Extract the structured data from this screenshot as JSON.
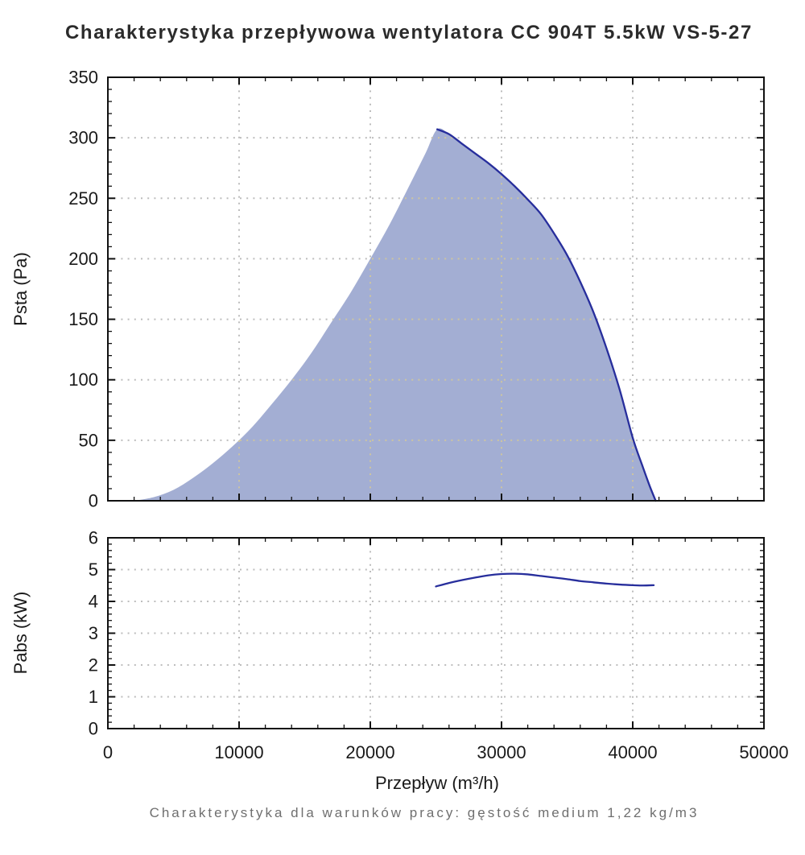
{
  "title": "Charakterystyka przepływowa wentylatora CC 904T 5.5kW VS-5-27",
  "caption": "Charakterystyka dla warunków pracy: gęstość medium 1,22 kg/m3",
  "xlabel": "Przepływ (m³/h)",
  "colors": {
    "area_fill": "#a3aed3",
    "curve_line": "#272e9c",
    "grid_dots": "#bdbdbd",
    "grid_dots_on_fill": "#cdc5a0",
    "axis": "#111111",
    "tick_text": "#1a1a1a",
    "title_text": "#2b2b2b",
    "caption_text": "#6f6f6f"
  },
  "chart_data": [
    {
      "type": "area",
      "name": "static-pressure-plot",
      "title": "",
      "xlabel": "",
      "ylabel": "Psta (Pa)",
      "xlim": [
        0,
        50000
      ],
      "ylim": [
        0,
        350
      ],
      "grid": "dotted",
      "legend": "none",
      "x_ticks": {
        "values": [
          0,
          10000,
          20000,
          30000,
          40000,
          50000
        ],
        "labels": [
          "0",
          "10000",
          "20000",
          "30000",
          "40000",
          "50000"
        ],
        "minor_step": 2000
      },
      "y_ticks": {
        "values": [
          0,
          50,
          100,
          150,
          200,
          250,
          300,
          350
        ],
        "labels": [
          "0",
          "50",
          "100",
          "150",
          "200",
          "250",
          "300",
          "350"
        ],
        "minor_step": 10
      },
      "series": [
        {
          "name": "operating-area-left-boundary",
          "type": "area-edge",
          "points": [
            [
              2000,
              0
            ],
            [
              3500,
              3
            ],
            [
              5000,
              9
            ],
            [
              6500,
              19
            ],
            [
              8000,
              31
            ],
            [
              9500,
              45
            ],
            [
              11000,
              61
            ],
            [
              12500,
              80
            ],
            [
              14000,
              100
            ],
            [
              15500,
              122
            ],
            [
              17000,
              147
            ],
            [
              18500,
              172
            ],
            [
              20000,
              200
            ],
            [
              21500,
              229
            ],
            [
              23000,
              261
            ],
            [
              24200,
              287
            ],
            [
              25100,
              307
            ]
          ]
        },
        {
          "name": "fan-pressure-curve",
          "type": "line",
          "points": [
            [
              25100,
              307
            ],
            [
              26000,
              303
            ],
            [
              27000,
              295
            ],
            [
              28000,
              287
            ],
            [
              29000,
              279
            ],
            [
              30000,
              270
            ],
            [
              31000,
              260
            ],
            [
              32000,
              249
            ],
            [
              33000,
              237
            ],
            [
              34000,
              221
            ],
            [
              35000,
              203
            ],
            [
              36000,
              181
            ],
            [
              37000,
              156
            ],
            [
              38000,
              126
            ],
            [
              39000,
              92
            ],
            [
              40000,
              52
            ],
            [
              40700,
              30
            ],
            [
              41300,
              12
            ],
            [
              41750,
              0
            ]
          ]
        }
      ]
    },
    {
      "type": "line",
      "name": "absorbed-power-plot",
      "title": "",
      "xlabel": "Przepływ (m³/h)",
      "ylabel": "Pabs (kW)",
      "xlim": [
        0,
        50000
      ],
      "ylim": [
        0,
        6
      ],
      "grid": "dotted",
      "legend": "none",
      "x_ticks": {
        "values": [
          0,
          10000,
          20000,
          30000,
          40000,
          50000
        ],
        "labels": [
          "0",
          "10000",
          "20000",
          "30000",
          "40000",
          "50000"
        ],
        "minor_step": 2000
      },
      "y_ticks": {
        "values": [
          0,
          1,
          2,
          3,
          4,
          5,
          6
        ],
        "labels": [
          "0",
          "1",
          "2",
          "3",
          "4",
          "5",
          "6"
        ],
        "minor_step": 0.2
      },
      "series": [
        {
          "name": "power-curve",
          "type": "line",
          "points": [
            [
              25000,
              4.47
            ],
            [
              26000,
              4.58
            ],
            [
              27000,
              4.67
            ],
            [
              28000,
              4.75
            ],
            [
              29000,
              4.82
            ],
            [
              30000,
              4.86
            ],
            [
              31000,
              4.87
            ],
            [
              32000,
              4.85
            ],
            [
              33000,
              4.8
            ],
            [
              34000,
              4.75
            ],
            [
              35000,
              4.7
            ],
            [
              36000,
              4.64
            ],
            [
              37000,
              4.6
            ],
            [
              38000,
              4.56
            ],
            [
              39000,
              4.53
            ],
            [
              40000,
              4.51
            ],
            [
              40800,
              4.5
            ],
            [
              41600,
              4.51
            ]
          ]
        }
      ]
    }
  ]
}
